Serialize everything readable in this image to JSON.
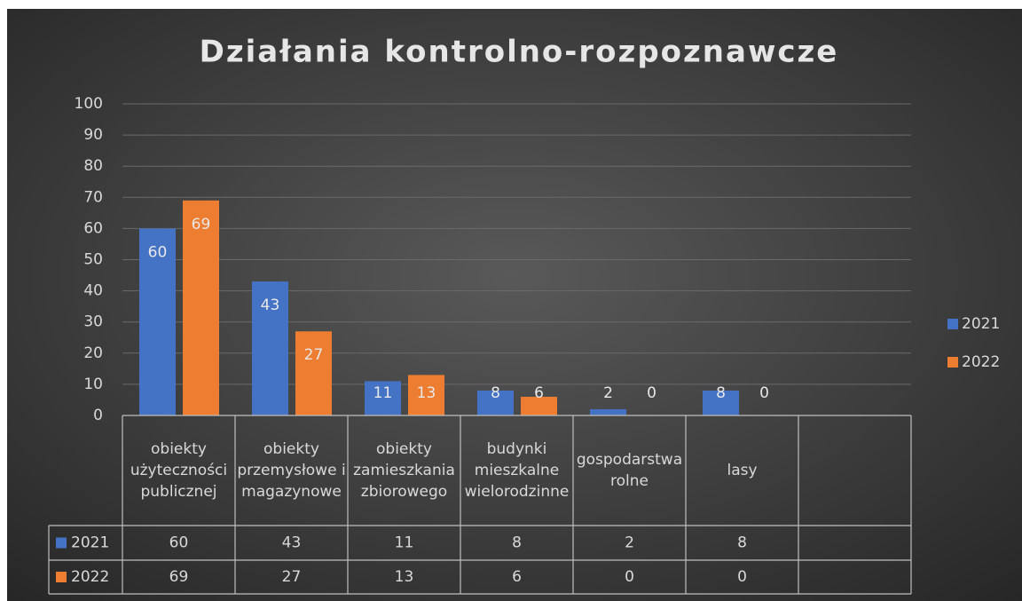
{
  "chart_data": {
    "type": "bar",
    "title": "Działania kontrolno-rozpoznawcze",
    "categories": [
      "obiekty użyteczności publicznej",
      "obiekty przemysłowe i magazynowe",
      "obiekty zamieszkania zbiorowego",
      "budynki mieszkalne wielorodzinne",
      "gospodarstwa rolne",
      "lasy",
      null
    ],
    "series": [
      {
        "name": "2021",
        "color": "#4472c4",
        "values": [
          60,
          43,
          11,
          8,
          2,
          8,
          null
        ]
      },
      {
        "name": "2022",
        "color": "#ed7d31",
        "values": [
          69,
          27,
          13,
          6,
          0,
          0,
          null
        ]
      }
    ],
    "ylim": [
      0,
      100
    ],
    "yticks": [
      0,
      10,
      20,
      30,
      40,
      50,
      60,
      70,
      80,
      90,
      100
    ],
    "grid": true,
    "legend": "right",
    "data_table": true
  }
}
